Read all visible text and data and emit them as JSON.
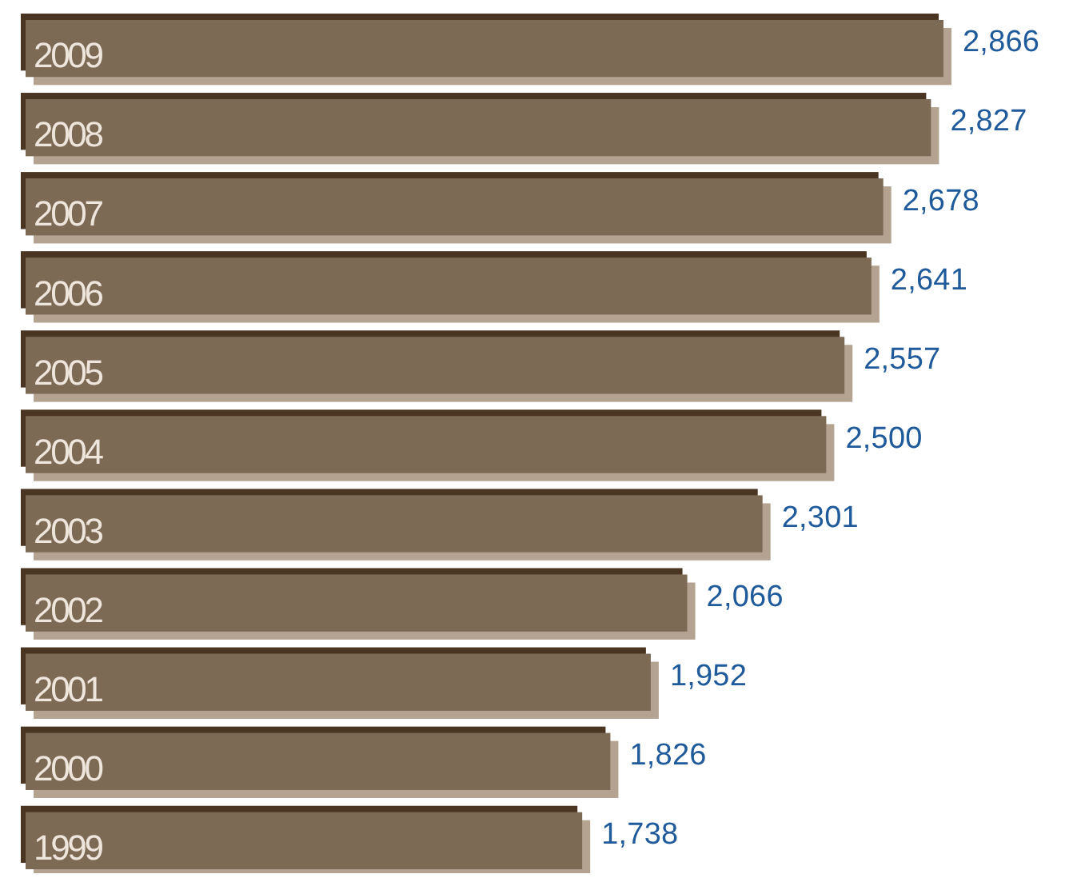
{
  "chart_data": {
    "type": "bar",
    "orientation": "horizontal",
    "categories": [
      "2009",
      "2008",
      "2007",
      "2006",
      "2005",
      "2004",
      "2003",
      "2002",
      "2001",
      "2000",
      "1999"
    ],
    "values": [
      2866,
      2827,
      2678,
      2641,
      2557,
      2500,
      2301,
      2066,
      1952,
      1826,
      1738
    ],
    "value_labels": [
      "2,866",
      "2,827",
      "2,678",
      "2,641",
      "2,557",
      "2,500",
      "2,301",
      "2,066",
      "1,952",
      "1,826",
      "1,738"
    ],
    "color": "#7d6a55"
  }
}
